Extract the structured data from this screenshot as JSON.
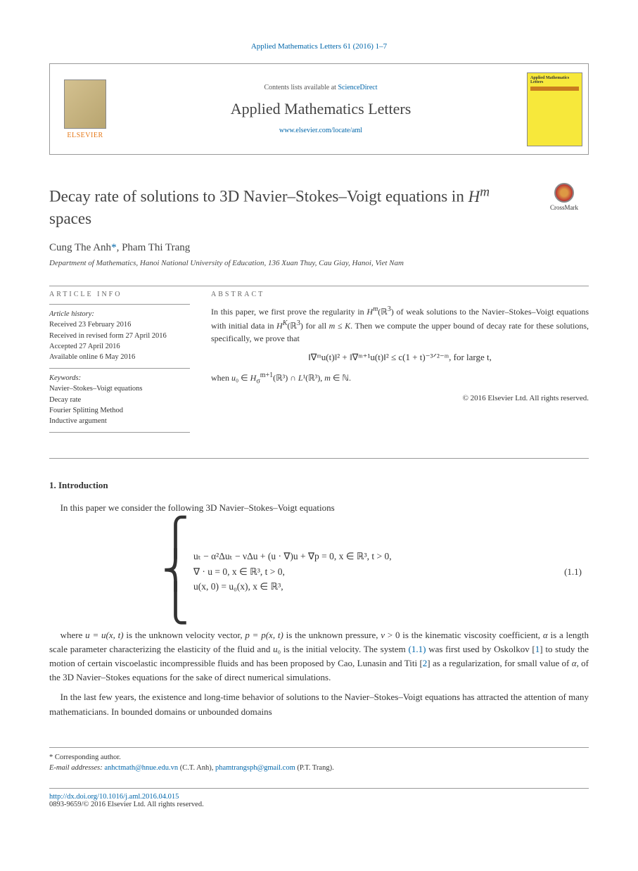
{
  "journal_ref": {
    "name": "Applied Mathematics Letters",
    "citation": "Applied Mathematics Letters 61 (2016) 1–7"
  },
  "header": {
    "publisher": "ELSEVIER",
    "contents_prefix": "Contents lists available at ",
    "contents_link": "ScienceDirect",
    "journal_title": "Applied Mathematics Letters",
    "journal_url": "www.elsevier.com/locate/aml",
    "cover_title": "Applied Mathematics Letters"
  },
  "article": {
    "title_html": "Decay rate of solutions to 3D Navier–Stokes–Voigt equations in <i>H<sup>m</sup></i> spaces",
    "crossmark": "CrossMark"
  },
  "authors": {
    "list_html": "Cung The Anh<a>*</a>, Pham Thi Trang",
    "affiliation": "Department of Mathematics, Hanoi National University of Education, 136 Xuan Thuy, Cau Giay, Hanoi, Viet Nam"
  },
  "info": {
    "label": "article info",
    "history_heading": "Article history:",
    "history": [
      "Received 23 February 2016",
      "Received in revised form 27 April 2016",
      "Accepted 27 April 2016",
      "Available online 6 May 2016"
    ],
    "keywords_heading": "Keywords:",
    "keywords": [
      "Navier–Stokes–Voigt equations",
      "Decay rate",
      "Fourier Splitting Method",
      "Inductive argument"
    ]
  },
  "abstract": {
    "label": "abstract",
    "p1_html": "In this paper, we first prove the regularity in <i>H<sup>m</sup></i>(ℝ<sup>3</sup>) of weak solutions to the Navier–Stokes–Voigt equations with initial data in <i>H<sup>K</sup></i>(ℝ<sup>3</sup>) for all <i>m</i> ≤ <i>K</i>. Then we compute the upper bound of decay rate for these solutions, specifically, we prove that",
    "equation": "‖∇ᵐu(t)‖² + ‖∇ᵐ⁺¹u(t)‖² ≤ c(1 + t)⁻³ᐟ²⁻ᵐ,   for large t,",
    "p2_html": "when <i>u</i>₀ ∈ <i>H</i><sub>σ</sub><sup>m+1</sup>(ℝ³) ∩ <i>L</i>¹(ℝ³), <i>m</i> ∈ ℕ.",
    "copyright": "© 2016 Elsevier Ltd. All rights reserved."
  },
  "section1": {
    "heading": "1. Introduction",
    "p1": "In this paper we consider the following 3D Navier–Stokes–Voigt equations",
    "eqn": {
      "line1": "uₜ − α²Δuₜ − νΔu + (u · ∇)u + ∇p = 0,    x ∈ ℝ³, t > 0,",
      "line2": "∇ · u = 0,                                              x ∈ ℝ³, t > 0,",
      "line3": "u(x, 0) = u₀(x),                                      x ∈ ℝ³,",
      "number": "(1.1)"
    },
    "p2_html": "where <i>u = u(x, t)</i> is the unknown velocity vector, <i>p = p(x, t)</i> is the unknown pressure, <i>ν</i> > 0 is the kinematic viscosity coefficient, <i>α</i> is a length scale parameter characterizing the elasticity of the fluid and <i>u</i>₀ is the initial velocity. The system <a>(1.1)</a> was first used by Oskolkov [<a>1</a>] to study the motion of certain viscoelastic incompressible fluids and has been proposed by Cao, Lunasin and Titi [<a>2</a>] as a regularization, for small value of <i>α</i>, of the 3D Navier–Stokes equations for the sake of direct numerical simulations.",
    "p3": "In the last few years, the existence and long-time behavior of solutions to the Navier–Stokes–Voigt equations has attracted the attention of many mathematicians. In bounded domains or unbounded domains"
  },
  "footnotes": {
    "corresponding": "* Corresponding author.",
    "emails_label": "E-mail addresses: ",
    "email1": "anhctmath@hnue.edu.vn",
    "email1_who": " (C.T. Anh), ",
    "email2": "phamtrangsph@gmail.com",
    "email2_who": " (P.T. Trang)."
  },
  "bottom": {
    "doi": "http://dx.doi.org/10.1016/j.aml.2016.04.015",
    "issn_line": "0893-9659/© 2016 Elsevier Ltd. All rights reserved."
  },
  "colors": {
    "link": "#0066aa",
    "publisher": "#e67817",
    "cover_bg": "#f7e83b",
    "rule": "#999999",
    "text": "#333333"
  }
}
